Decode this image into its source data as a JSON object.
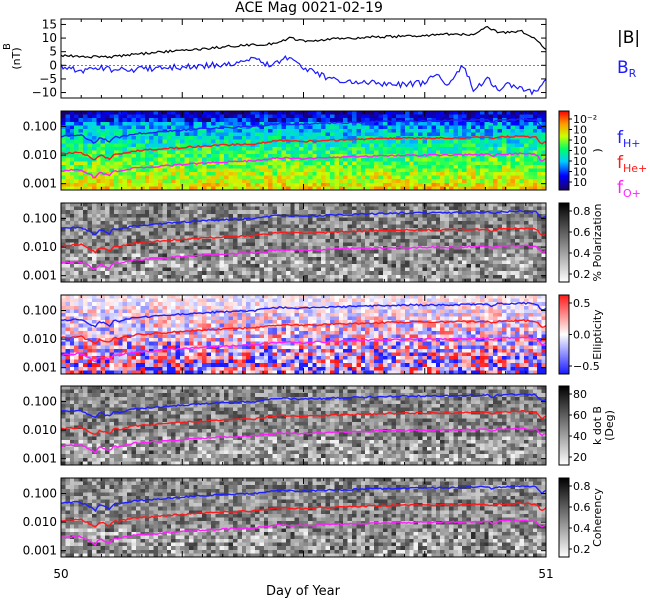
{
  "title": "ACE Mag 0021-02-19",
  "xlabel": "Day of Year",
  "x_ticks": [
    {
      "value": 50,
      "label": "50"
    },
    {
      "value": 51,
      "label": "51"
    }
  ],
  "colors": {
    "bmag": "#000000",
    "br": "#1a1aff",
    "fH": "#2020ff",
    "fHe": "#ff1a1a",
    "fO": "#ff20ff"
  },
  "chart_data": [
    {
      "type": "line",
      "name": "magnetic-field",
      "xlim": [
        50,
        51
      ],
      "ylim": [
        -12,
        17
      ],
      "yticks": [
        {
          "value": 15,
          "label": "15"
        },
        {
          "value": 10,
          "label": "10"
        },
        {
          "value": 5,
          "label": "5"
        },
        {
          "value": 0,
          "label": "0"
        },
        {
          "value": -5,
          "label": "−5"
        },
        {
          "value": -10,
          "label": "−10"
        }
      ],
      "ylabel": {
        "symbol": "B",
        "unit": "(nT)"
      },
      "legend": [
        {
          "text": "|B|",
          "sub": "",
          "color_key": "bmag"
        },
        {
          "text": "B",
          "sub": "R",
          "color_key": "br"
        }
      ],
      "series": [
        {
          "name": "|B|",
          "color_key": "bmag",
          "x": [
            50.0,
            50.05,
            50.1,
            50.15,
            50.2,
            50.25,
            50.3,
            50.35,
            50.4,
            50.45,
            50.47,
            50.5,
            50.55,
            50.6,
            50.65,
            50.7,
            50.75,
            50.8,
            50.85,
            50.88,
            50.9,
            50.95,
            50.98,
            51.0
          ],
          "y": [
            3.5,
            3.2,
            3.0,
            4.0,
            4.8,
            5.5,
            6.2,
            7.0,
            7.5,
            8.2,
            10.0,
            9.0,
            9.5,
            10.0,
            10.5,
            10.6,
            11.0,
            11.5,
            11.3,
            14.0,
            12.0,
            12.5,
            9.5,
            6.0
          ]
        },
        {
          "name": "B_R",
          "color_key": "br",
          "x": [
            50.0,
            50.05,
            50.08,
            50.1,
            50.15,
            50.2,
            50.25,
            50.3,
            50.35,
            50.38,
            50.4,
            50.43,
            50.47,
            50.5,
            50.55,
            50.6,
            50.65,
            50.7,
            50.75,
            50.77,
            50.8,
            50.83,
            50.85,
            50.88,
            50.9,
            50.92,
            50.95,
            50.98,
            51.0
          ],
          "y": [
            -0.5,
            -2.0,
            -1.0,
            -1.5,
            -1.5,
            -1.0,
            -0.5,
            0.0,
            0.5,
            1.0,
            2.5,
            0.0,
            3.0,
            -1.0,
            -4.5,
            -6.0,
            -6.5,
            -7.0,
            -6.5,
            -3.0,
            -7.5,
            0.0,
            -9.0,
            -5.0,
            -9.5,
            -7.0,
            -8.5,
            -10.5,
            -5.0
          ]
        }
      ]
    },
    {
      "type": "heatmap",
      "name": "power-spectrum",
      "xlim": [
        50,
        51
      ],
      "ylog": true,
      "ylim": [
        0.0006,
        0.35
      ],
      "yticks": [
        {
          "value": 0.1,
          "label": "0.100"
        },
        {
          "value": 0.01,
          "label": "0.010"
        },
        {
          "value": 0.001,
          "label": "0.001"
        }
      ],
      "colormap": "rainbow",
      "colorbar": {
        "ticks": [
          "10⁻²",
          "10",
          "10",
          "10",
          "10",
          "10",
          "10"
        ],
        "label": ")"
      },
      "legend": [
        {
          "text": "f",
          "sub": "H+",
          "color_key": "fH"
        },
        {
          "text": "f",
          "sub": "He+",
          "color_key": "fHe"
        },
        {
          "text": "f",
          "sub": "O+",
          "color_key": "fO"
        }
      ]
    },
    {
      "type": "heatmap",
      "name": "polarization",
      "xlim": [
        50,
        51
      ],
      "ylog": true,
      "ylim": [
        0.0006,
        0.35
      ],
      "yticks": [
        {
          "value": 0.1,
          "label": "0.100"
        },
        {
          "value": 0.01,
          "label": "0.010"
        },
        {
          "value": 0.001,
          "label": "0.001"
        }
      ],
      "colormap": "gray",
      "colorbar": {
        "ticks": [
          "0.8",
          "0.6",
          "0.4",
          "0.2"
        ],
        "label": "% Polarization"
      }
    },
    {
      "type": "heatmap",
      "name": "ellipticity",
      "xlim": [
        50,
        51
      ],
      "ylog": true,
      "ylim": [
        0.0006,
        0.35
      ],
      "yticks": [
        {
          "value": 0.1,
          "label": "0.100"
        },
        {
          "value": 0.01,
          "label": "0.010"
        },
        {
          "value": 0.001,
          "label": "0.001"
        }
      ],
      "colormap": "bwr",
      "colorbar": {
        "ticks": [
          "0.5",
          "0.0",
          "−0.5"
        ],
        "label": "Ellipticity"
      }
    },
    {
      "type": "heatmap",
      "name": "wave-normal-angle",
      "xlim": [
        50,
        51
      ],
      "ylog": true,
      "ylim": [
        0.0006,
        0.35
      ],
      "yticks": [
        {
          "value": 0.1,
          "label": "0.100"
        },
        {
          "value": 0.01,
          "label": "0.010"
        },
        {
          "value": 0.001,
          "label": "0.001"
        }
      ],
      "colormap": "gray",
      "colorbar": {
        "ticks": [
          "80",
          "60",
          "40",
          "20"
        ],
        "label": "k dot B",
        "label2": "(Deg)"
      }
    },
    {
      "type": "heatmap",
      "name": "coherency",
      "xlim": [
        50,
        51
      ],
      "ylog": true,
      "ylim": [
        0.0006,
        0.35
      ],
      "yticks": [
        {
          "value": 0.1,
          "label": "0.100"
        },
        {
          "value": 0.01,
          "label": "0.010"
        },
        {
          "value": 0.001,
          "label": "0.001"
        }
      ],
      "colormap": "gray",
      "colorbar": {
        "ticks": [
          "0.8",
          "0.6",
          "0.4",
          "0.2"
        ],
        "label": "Coherency"
      }
    }
  ],
  "gyrofrequency_lines": [
    {
      "name": "fH+",
      "color_key": "fH",
      "x": [
        50.0,
        50.04,
        50.07,
        50.08,
        50.1,
        50.11,
        50.12,
        50.15,
        50.2,
        50.3,
        50.4,
        50.45,
        50.5,
        50.6,
        50.7,
        50.8,
        50.88,
        50.89,
        50.9,
        50.95,
        50.98,
        50.99,
        51.0
      ],
      "y": [
        0.045,
        0.05,
        0.025,
        0.04,
        0.03,
        0.045,
        0.042,
        0.055,
        0.065,
        0.085,
        0.1,
        0.13,
        0.12,
        0.14,
        0.155,
        0.16,
        0.17,
        0.14,
        0.17,
        0.18,
        0.17,
        0.1,
        0.12
      ]
    },
    {
      "name": "fHe+",
      "color_key": "fHe",
      "x": [
        50.0,
        50.04,
        50.07,
        50.08,
        50.1,
        50.11,
        50.12,
        50.15,
        50.2,
        50.3,
        50.4,
        50.45,
        50.5,
        50.6,
        50.7,
        50.8,
        50.88,
        50.89,
        50.9,
        50.95,
        50.98,
        50.99,
        51.0
      ],
      "y": [
        0.011,
        0.0125,
        0.0065,
        0.01,
        0.0075,
        0.011,
        0.0105,
        0.014,
        0.016,
        0.021,
        0.025,
        0.032,
        0.03,
        0.035,
        0.039,
        0.04,
        0.042,
        0.035,
        0.043,
        0.045,
        0.042,
        0.025,
        0.03
      ]
    },
    {
      "name": "fO+",
      "color_key": "fO",
      "x": [
        50.0,
        50.04,
        50.07,
        50.08,
        50.1,
        50.11,
        50.12,
        50.15,
        50.2,
        50.3,
        50.4,
        50.45,
        50.5,
        50.6,
        50.7,
        50.8,
        50.88,
        50.89,
        50.9,
        50.95,
        50.98,
        50.99,
        51.0
      ],
      "y": [
        0.0028,
        0.0031,
        0.0016,
        0.0025,
        0.0019,
        0.0028,
        0.0026,
        0.0035,
        0.004,
        0.0053,
        0.0063,
        0.008,
        0.0075,
        0.0088,
        0.0097,
        0.01,
        0.0105,
        0.0088,
        0.0107,
        0.0113,
        0.0105,
        0.0063,
        0.0075
      ]
    }
  ]
}
